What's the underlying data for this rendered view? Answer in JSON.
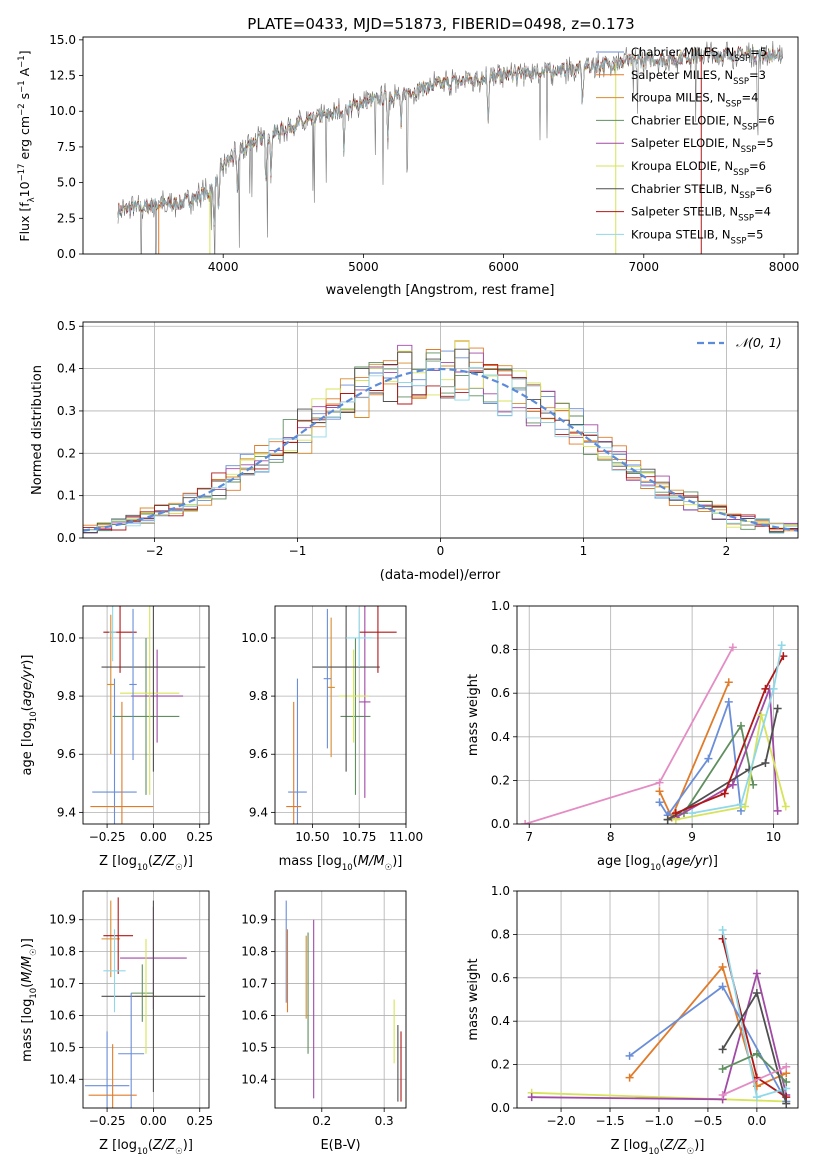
{
  "figure_title": "PLATE=0433, MJD=51873, FIBERID=0498, z=0.173",
  "series_colors": [
    "#6a8ed8",
    "#e07b2a",
    "#d98c2f",
    "#5f8f5f",
    "#a04aa6",
    "#d7e35a",
    "#4f4f4f",
    "#b01818",
    "#8fd8e8"
  ],
  "colors": {
    "Chabrier MILES": "#6a8ed8",
    "Salpeter MILES": "#e07b2a",
    "Kroupa MILES": "#d98c2f",
    "Chabrier ELODIE": "#5f8f5f",
    "Salpeter ELODIE": "#a04aa6",
    "Kroupa ELODIE": "#d7e35a",
    "Chabrier STELIB": "#4f4f4f",
    "Salpeter STELIB": "#b01818",
    "Kroupa STELIB": "#8fd8e8",
    "data": "#777777",
    "gaussian": "#5b8bd9"
  },
  "chart_data": [
    {
      "type": "line",
      "name": "spectrum",
      "xlabel": "wavelength [Angstrom, rest frame]",
      "ylabel": "Flux [f_λ 10^-17 erg cm^-2 s^-1 A^-1]",
      "xlim": [
        3000,
        8100
      ],
      "ylim": [
        0,
        15.2
      ],
      "xticks": [
        4000,
        5000,
        6000,
        7000,
        8000
      ],
      "yticks": [
        0.0,
        2.5,
        5.0,
        7.5,
        10.0,
        12.5,
        15.0
      ],
      "legend_position": "right",
      "legend": [
        {
          "label": "Chabrier MILES, N_SSP=5",
          "base": "Chabrier MILES, N",
          "sub": "SSP",
          "tail": "=5"
        },
        {
          "label": "Salpeter MILES, N_SSP=3",
          "base": "Salpeter MILES, N",
          "sub": "SSP",
          "tail": "=3"
        },
        {
          "label": "Kroupa MILES, N_SSP=4",
          "base": "Kroupa MILES, N",
          "sub": "SSP",
          "tail": "=4"
        },
        {
          "label": "Chabrier ELODIE, N_SSP=6",
          "base": "Chabrier ELODIE, N",
          "sub": "SSP",
          "tail": "=6"
        },
        {
          "label": "Salpeter ELODIE, N_SSP=5",
          "base": "Salpeter ELODIE, N",
          "sub": "SSP",
          "tail": "=5"
        },
        {
          "label": "Kroupa ELODIE, N_SSP=6",
          "base": "Kroupa ELODIE, N",
          "sub": "SSP",
          "tail": "=6"
        },
        {
          "label": "Chabrier STELIB, N_SSP=6",
          "base": "Chabrier STELIB, N",
          "sub": "SSP",
          "tail": "=6"
        },
        {
          "label": "Salpeter STELIB, N_SSP=4",
          "base": "Salpeter STELIB, N",
          "sub": "SSP",
          "tail": "=4"
        },
        {
          "label": "Kroupa STELIB, N_SSP=5",
          "base": "Kroupa STELIB, N",
          "sub": "SSP",
          "tail": "=5"
        }
      ],
      "continuum": {
        "x": [
          3250,
          3500,
          3700,
          3900,
          4000,
          4200,
          4500,
          4800,
          5000,
          5300,
          5600,
          6000,
          6300,
          6600,
          6900,
          7200,
          7500,
          7800,
          8000
        ],
        "y": [
          3.1,
          3.4,
          3.6,
          4.3,
          6.2,
          7.8,
          9.0,
          9.9,
          10.6,
          11.3,
          12.0,
          12.5,
          12.8,
          13.1,
          13.5,
          13.7,
          14.0,
          14.0,
          13.8
        ]
      },
      "absorption_lines": [
        3934,
        3969,
        4102,
        4304,
        4340,
        4861,
        5175,
        5270,
        5890,
        6563
      ],
      "cutoff_lines": [
        {
          "series": "Salpeter MILES",
          "x": 3540
        },
        {
          "series": "Kroupa ELODIE",
          "x": 3905
        },
        {
          "series": "Kroupa ELODIE",
          "x": 6800
        },
        {
          "series": "Salpeter STELIB",
          "x": 7410
        }
      ]
    },
    {
      "type": "histogram",
      "name": "residuals",
      "xlabel": "(data-model)/error",
      "ylabel": "Normed distribution",
      "xlim": [
        -2.5,
        2.5
      ],
      "ylim": [
        0,
        0.51
      ],
      "xticks": [
        -2,
        -1,
        0,
        1,
        2
      ],
      "yticks": [
        0.0,
        0.1,
        0.2,
        0.3,
        0.4,
        0.5
      ],
      "bin_width": 0.1,
      "legend": [
        {
          "label": "N(0,1)",
          "sym": "𝒩(0, 1)"
        }
      ]
    },
    {
      "type": "errorbar",
      "name": "age-vs-Z",
      "xlabel": "Z [log10(Z/Z☉)]",
      "ylabel": "age [log10(age/yr)]",
      "xlim": [
        -0.38,
        0.3
      ],
      "ylim": [
        9.36,
        10.11
      ],
      "xticks": [
        -0.25,
        0.0,
        0.25
      ],
      "yticks": [
        9.4,
        9.6,
        9.8,
        10.0
      ],
      "points": [
        {
          "x": -0.21,
          "xerr": 0.12,
          "y": 9.47,
          "yerr": 0.39
        },
        {
          "x": -0.17,
          "xerr": 0.17,
          "y": 9.42,
          "yerr": 0.36
        },
        {
          "x": -0.23,
          "xerr": 0.02,
          "y": 9.84,
          "yerr": 0.24
        },
        {
          "x": -0.04,
          "xerr": 0.18,
          "y": 9.73,
          "yerr": 0.27
        },
        {
          "x": 0.02,
          "xerr": 0.14,
          "y": 9.8,
          "yerr": 0.16
        },
        {
          "x": -0.02,
          "xerr": 0.16,
          "y": 9.81,
          "yerr": 0.35
        },
        {
          "x": 0.0,
          "xerr": 0.28,
          "y": 9.9,
          "yerr": 0.36
        },
        {
          "x": -0.18,
          "xerr": 0.09,
          "y": 10.02,
          "yerr": 0.14
        },
        {
          "x": -0.22,
          "xerr": 0.02,
          "y": 10.02,
          "yerr": 0.1
        },
        {
          "x": -0.11,
          "xerr": 0.02,
          "y": 9.84,
          "yerr": 0.26
        }
      ]
    },
    {
      "type": "errorbar",
      "name": "age-vs-mass",
      "xlabel": "mass [log10(M/M☉)]",
      "ylabel": "",
      "xlim": [
        10.3,
        11.0
      ],
      "ylim": [
        9.36,
        10.11
      ],
      "xticks": [
        10.5,
        10.75,
        11.0
      ],
      "yticks": [
        9.4,
        9.6,
        9.8,
        10.0
      ],
      "points": [
        {
          "x": 10.42,
          "xerr": 0.05,
          "y": 9.47,
          "yerr": 0.39
        },
        {
          "x": 10.4,
          "xerr": 0.04,
          "y": 9.42,
          "yerr": 0.36
        },
        {
          "x": 10.6,
          "xerr": 0.02,
          "y": 9.83,
          "yerr": 0.24
        },
        {
          "x": 10.73,
          "xerr": 0.08,
          "y": 9.73,
          "yerr": 0.27
        },
        {
          "x": 10.78,
          "xerr": 0.03,
          "y": 9.78,
          "yerr": 0.33
        },
        {
          "x": 10.72,
          "xerr": 0.08,
          "y": 9.8,
          "yerr": 0.16
        },
        {
          "x": 10.68,
          "xerr": 0.18,
          "y": 9.9,
          "yerr": 0.36
        },
        {
          "x": 10.85,
          "xerr": 0.1,
          "y": 10.02,
          "yerr": 0.14
        },
        {
          "x": 10.75,
          "xerr": 0.07,
          "y": 10.0,
          "yerr": 0.1
        },
        {
          "x": 10.58,
          "xerr": 0.02,
          "y": 9.86,
          "yerr": 0.24
        }
      ]
    },
    {
      "type": "line",
      "name": "mass-weight-vs-age",
      "xlabel": "age [log10(age/yr)]",
      "ylabel": "mass weight",
      "xlim": [
        6.85,
        10.3
      ],
      "ylim": [
        0,
        1.0
      ],
      "xticks": [
        7,
        8,
        9,
        10
      ],
      "yticks": [
        0.0,
        0.2,
        0.4,
        0.6,
        0.8,
        1.0
      ],
      "series": [
        {
          "color": "#e38dc4",
          "x": [
            6.95,
            8.6,
            9.5
          ],
          "y": [
            0.0,
            0.19,
            0.81
          ]
        },
        {
          "color": "#e07b2a",
          "x": [
            8.6,
            8.75,
            9.45
          ],
          "y": [
            0.15,
            0.03,
            0.65
          ]
        },
        {
          "color": "#6a8ed8",
          "x": [
            8.6,
            8.7,
            9.2,
            9.45,
            9.6
          ],
          "y": [
            0.1,
            0.04,
            0.3,
            0.56,
            0.06
          ]
        },
        {
          "color": "#5f8f5f",
          "x": [
            8.7,
            8.9,
            9.6,
            9.75
          ],
          "y": [
            0.02,
            0.05,
            0.45,
            0.18
          ]
        },
        {
          "color": "#a04aa6",
          "x": [
            8.8,
            9.5,
            9.95,
            10.05
          ],
          "y": [
            0.03,
            0.18,
            0.62,
            0.06
          ]
        },
        {
          "color": "#d7e35a",
          "x": [
            8.8,
            9.65,
            9.85,
            10.15
          ],
          "y": [
            0.02,
            0.08,
            0.5,
            0.08
          ]
        },
        {
          "color": "#4f4f4f",
          "x": [
            8.7,
            9.7,
            9.9,
            10.05
          ],
          "y": [
            0.02,
            0.25,
            0.28,
            0.53
          ]
        },
        {
          "color": "#b01818",
          "x": [
            8.8,
            9.4,
            9.9,
            10.12
          ],
          "y": [
            0.05,
            0.14,
            0.62,
            0.77
          ]
        },
        {
          "color": "#8fd8e8",
          "x": [
            9.0,
            9.6,
            10.0,
            10.1
          ],
          "y": [
            0.05,
            0.09,
            0.62,
            0.82
          ]
        }
      ]
    },
    {
      "type": "errorbar",
      "name": "mass-vs-Z",
      "xlabel": "Z [log10(Z/Z☉)]",
      "ylabel": "mass [log10(M/M☉)]",
      "xlim": [
        -0.38,
        0.3
      ],
      "ylim": [
        10.31,
        10.99
      ],
      "xticks": [
        -0.25,
        0.0,
        0.25
      ],
      "yticks": [
        10.4,
        10.5,
        10.6,
        10.7,
        10.8,
        10.9
      ],
      "points": [
        {
          "x": -0.25,
          "xerr": 0.12,
          "y": 10.38,
          "yerr": 0.17
        },
        {
          "x": -0.22,
          "xerr": 0.13,
          "y": 10.35,
          "yerr": 0.16
        },
        {
          "x": -0.23,
          "xerr": 0.05,
          "y": 10.84,
          "yerr": 0.12
        },
        {
          "x": -0.06,
          "xerr": 0.06,
          "y": 10.67,
          "yerr": 0.09
        },
        {
          "x": 0.0,
          "xerr": 0.18,
          "y": 10.78,
          "yerr": 0.16
        },
        {
          "x": -0.04,
          "xerr": 0.06,
          "y": 10.66,
          "yerr": 0.18
        },
        {
          "x": 0.0,
          "xerr": 0.28,
          "y": 10.66,
          "yerr": 0.3
        },
        {
          "x": -0.19,
          "xerr": 0.08,
          "y": 10.85,
          "yerr": 0.12
        },
        {
          "x": -0.21,
          "xerr": 0.06,
          "y": 10.74,
          "yerr": 0.13
        },
        {
          "x": -0.12,
          "xerr": 0.07,
          "y": 10.48,
          "yerr": 0.19
        }
      ]
    },
    {
      "type": "errorbar",
      "name": "mass-vs-EBV",
      "xlabel": "E(B-V)",
      "ylabel": "",
      "xlim": [
        0.125,
        0.335
      ],
      "ylim": [
        10.31,
        10.99
      ],
      "xticks": [
        0.2,
        0.3
      ],
      "yticks": [
        10.4,
        10.5,
        10.6,
        10.7,
        10.8,
        10.9
      ],
      "points": [
        {
          "x": 0.143,
          "y": 10.8,
          "yerr": 0.16
        },
        {
          "x": 0.145,
          "y": 10.74,
          "yerr": 0.13
        },
        {
          "x": 0.175,
          "y": 10.72,
          "yerr": 0.13
        },
        {
          "x": 0.178,
          "y": 10.67,
          "yerr": 0.19
        },
        {
          "x": 0.187,
          "y": 10.62,
          "yerr": 0.28
        },
        {
          "x": 0.316,
          "y": 10.55,
          "yerr": 0.1
        },
        {
          "x": 0.322,
          "y": 10.45,
          "yerr": 0.12
        },
        {
          "x": 0.327,
          "y": 10.44,
          "yerr": 0.11
        }
      ]
    },
    {
      "type": "line",
      "name": "mass-weight-vs-Z",
      "xlabel": "Z [log10(Z/Z☉)]",
      "ylabel": "mass weight",
      "xlim": [
        -2.45,
        0.42
      ],
      "ylim": [
        0,
        1.0
      ],
      "xticks": [
        -2.0,
        -1.5,
        -1.0,
        -0.5,
        0.0
      ],
      "yticks": [
        0.0,
        0.2,
        0.4,
        0.6,
        0.8,
        1.0
      ],
      "series": [
        {
          "color": "#d7e35a",
          "x": [
            -2.3,
            -0.35,
            0.3
          ],
          "y": [
            0.07,
            0.04,
            0.03
          ]
        },
        {
          "color": "#a04aa6",
          "x": [
            -2.3,
            -0.35,
            0.0,
            0.3
          ],
          "y": [
            0.05,
            0.04,
            0.62,
            0.06
          ]
        },
        {
          "color": "#e07b2a",
          "x": [
            -1.3,
            -0.35,
            0.0,
            0.3
          ],
          "y": [
            0.14,
            0.65,
            0.1,
            0.16
          ]
        },
        {
          "color": "#6a8ed8",
          "x": [
            -1.3,
            -0.35,
            0.3
          ],
          "y": [
            0.24,
            0.56,
            0.03
          ]
        },
        {
          "color": "#b01818",
          "x": [
            -0.35,
            0.0,
            0.3
          ],
          "y": [
            0.78,
            0.14,
            0.05
          ]
        },
        {
          "color": "#8fd8e8",
          "x": [
            -0.35,
            0.0,
            0.3
          ],
          "y": [
            0.82,
            0.05,
            0.09
          ]
        },
        {
          "color": "#5f8f5f",
          "x": [
            -0.35,
            0.0,
            0.3
          ],
          "y": [
            0.18,
            0.25,
            0.12
          ]
        },
        {
          "color": "#4f4f4f",
          "x": [
            -0.35,
            0.0,
            0.3
          ],
          "y": [
            0.27,
            0.53,
            0.02
          ]
        },
        {
          "color": "#e38dc4",
          "x": [
            -0.35,
            0.3
          ],
          "y": [
            0.06,
            0.19
          ]
        }
      ]
    }
  ]
}
